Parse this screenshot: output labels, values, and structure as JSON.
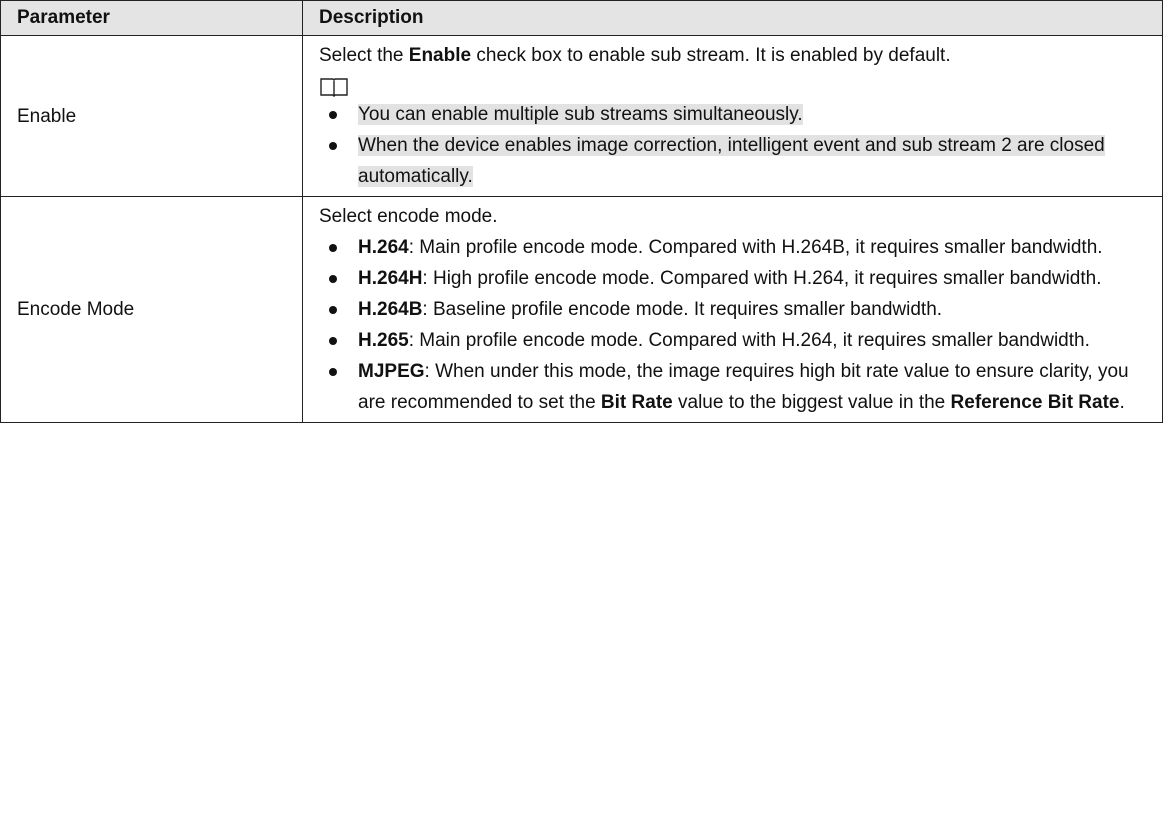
{
  "table": {
    "header": [
      "Parameter",
      "Description"
    ],
    "rows": [
      {
        "parameter": "Enable",
        "intro": [
          {
            "text": "Select the "
          },
          {
            "text": "Enable",
            "bold": true
          },
          {
            "text": " check box to enable sub stream. It is enabled by default."
          }
        ],
        "note_bullets": [
          "You can enable multiple sub streams simultaneously.",
          "When the device enables image correction, intelligent event and sub stream 2 are closed automatically."
        ]
      },
      {
        "parameter": "Encode Mode",
        "intro": [
          {
            "text": "Select encode mode."
          }
        ],
        "bullets": [
          [
            {
              "text": "H.264",
              "bold": true
            },
            {
              "text": ": Main profile encode mode. Compared with H.264B, it requires smaller bandwidth."
            }
          ],
          [
            {
              "text": "H.264H",
              "bold": true
            },
            {
              "text": ": High profile encode mode. Compared with H.264, it requires smaller bandwidth."
            }
          ],
          [
            {
              "text": "H.264B",
              "bold": true
            },
            {
              "text": ": Baseline profile encode mode. It requires smaller bandwidth."
            }
          ],
          [
            {
              "text": "H.265",
              "bold": true
            },
            {
              "text": ": Main profile encode mode. Compared with H.264, it requires smaller bandwidth."
            }
          ],
          [
            {
              "text": "MJPEG",
              "bold": true
            },
            {
              "text": ": When under this mode, the image requires high bit rate value to ensure clarity, you are recommended to set the "
            },
            {
              "text": "Bit Rate",
              "bold": true
            },
            {
              "text": " value to the biggest value in the "
            },
            {
              "text": "Reference Bit Rate",
              "bold": true
            },
            {
              "text": "."
            }
          ]
        ]
      }
    ]
  }
}
